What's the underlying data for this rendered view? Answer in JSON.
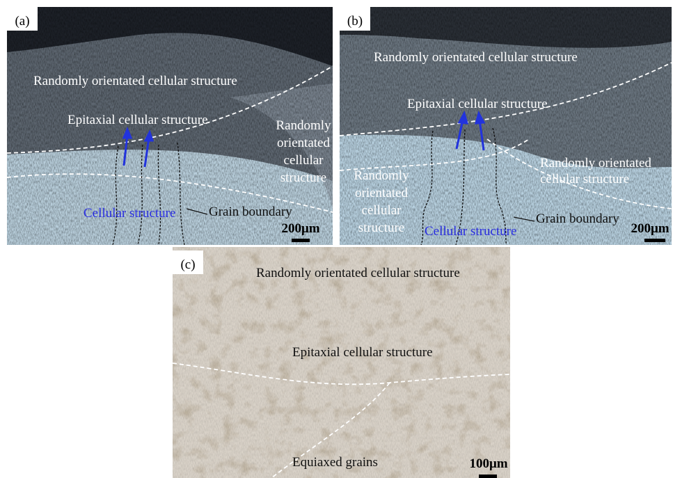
{
  "panels": [
    {
      "label": "(a)",
      "annotations": [
        {
          "lines": [
            "Randomly orientated cellular structure"
          ]
        },
        {
          "lines": [
            "Epitaxial cellular structure"
          ]
        },
        {
          "lines": [
            "Randomly",
            "orientated",
            "cellular",
            "structure"
          ]
        },
        {
          "lines": [
            "Cellular structure"
          ]
        },
        {
          "lines": [
            "Grain boundary"
          ]
        }
      ],
      "scale_bar": "200μm"
    },
    {
      "label": "(b)",
      "annotations": [
        {
          "lines": [
            "Randomly orientated cellular structure"
          ]
        },
        {
          "lines": [
            "Epitaxial cellular structure"
          ]
        },
        {
          "lines": [
            "Randomly orientated",
            "cellular structure"
          ]
        },
        {
          "lines": [
            "Randomly",
            "orientated",
            "cellular",
            "structure"
          ]
        },
        {
          "lines": [
            "Cellular structure"
          ]
        },
        {
          "lines": [
            "Grain boundary"
          ]
        }
      ],
      "scale_bar": "200μm"
    },
    {
      "label": "(c)",
      "annotations": [
        {
          "lines": [
            "Randomly orientated cellular structure"
          ]
        },
        {
          "lines": [
            "Epitaxial cellular structure"
          ]
        },
        {
          "lines": [
            "Equiaxed grains"
          ]
        }
      ],
      "scale_bar": "100μm"
    }
  ]
}
